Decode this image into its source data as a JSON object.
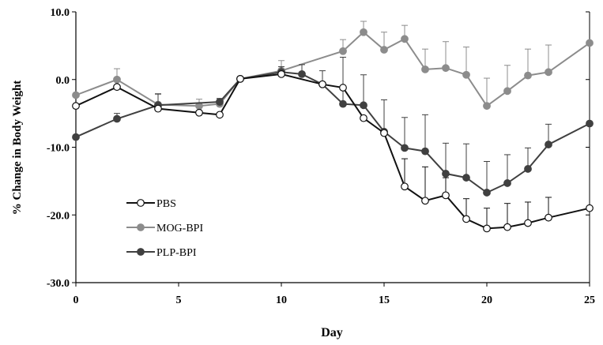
{
  "chart_data": {
    "type": "line",
    "title": "",
    "xlabel": "Day",
    "ylabel": "% Change in Body Weight",
    "xlim": [
      0,
      25
    ],
    "ylim": [
      -30,
      10
    ],
    "x_ticks": [
      0,
      5,
      10,
      15,
      20,
      25
    ],
    "y_ticks": [
      10,
      0,
      -10,
      -20,
      -30
    ],
    "x_tick_labels": [
      "0",
      "5",
      "10",
      "15",
      "20",
      "25"
    ],
    "y_tick_labels": [
      "10.0",
      "0.0",
      "-10.0",
      "-20.0",
      "-30.0"
    ],
    "grid": false,
    "legend_position": "lower-left",
    "series": [
      {
        "name": "PBS",
        "color": "#111111",
        "marker_fill": "#ffffff",
        "x": [
          0,
          2,
          4,
          6,
          7,
          8,
          10,
          12,
          13,
          14,
          15,
          16,
          17,
          18,
          19,
          20,
          21,
          22,
          23,
          25
        ],
        "values": [
          -3.9,
          -1.1,
          -4.3,
          -4.9,
          -5.2,
          0.1,
          0.8,
          -0.7,
          -1.2,
          -5.7,
          -7.9,
          -15.8,
          -17.9,
          -17.1,
          -20.6,
          -22.0,
          -21.8,
          -21.2,
          -20.4,
          -19.0
        ],
        "error": [
          0,
          0,
          0,
          0,
          0,
          0,
          0,
          0,
          0,
          0,
          0,
          4.1,
          5.0,
          2.6,
          3.0,
          3.0,
          3.5,
          3.1,
          3.0,
          0
        ]
      },
      {
        "name": "MOG-BPI",
        "color": "#8c8c8c",
        "marker_fill": "#8c8c8c",
        "x": [
          0,
          2,
          4,
          6,
          7,
          8,
          10,
          13,
          14,
          15,
          16,
          17,
          18,
          19,
          20,
          21,
          22,
          23,
          25
        ],
        "values": [
          -2.3,
          0.0,
          -3.7,
          -3.9,
          -3.6,
          0.1,
          1.3,
          4.2,
          7.0,
          4.4,
          6.0,
          1.5,
          1.7,
          0.7,
          -3.9,
          -1.7,
          0.6,
          1.1,
          5.4
        ],
        "error": [
          0,
          1.6,
          1.5,
          1.0,
          0.8,
          0,
          1.5,
          1.7,
          1.6,
          2.6,
          2.0,
          3.0,
          3.9,
          4.1,
          4.1,
          3.8,
          3.9,
          4.0,
          0
        ]
      },
      {
        "name": "PLP-BPI",
        "color": "#404040",
        "marker_fill": "#404040",
        "x": [
          0,
          2,
          4,
          7,
          8,
          10,
          11,
          12,
          13,
          14,
          15,
          16,
          17,
          18,
          19,
          20,
          21,
          22,
          23,
          25
        ],
        "values": [
          -8.5,
          -5.8,
          -3.8,
          -3.3,
          0.1,
          1.1,
          0.8,
          -0.7,
          -3.6,
          -3.8,
          -7.7,
          -10.1,
          -10.6,
          -13.9,
          -14.5,
          -16.7,
          -15.3,
          -13.2,
          -9.6,
          -6.5
        ],
        "error": [
          0,
          0.8,
          1.7,
          0.5,
          0,
          0.8,
          1.4,
          2.0,
          6.9,
          4.5,
          4.7,
          4.5,
          5.4,
          4.5,
          5.0,
          4.6,
          4.2,
          3.1,
          3.0,
          0
        ]
      }
    ]
  }
}
